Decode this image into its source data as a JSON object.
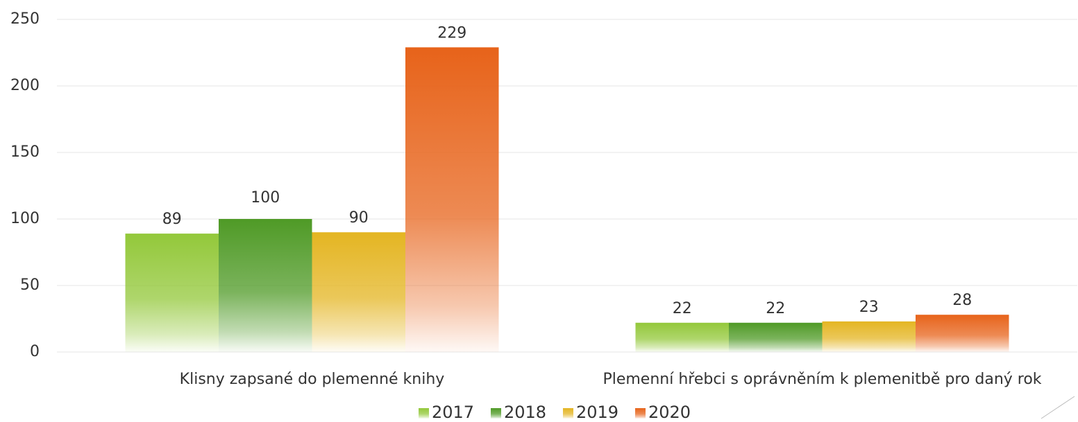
{
  "chart_data": {
    "type": "bar",
    "categories": [
      "Klisny zapsané do plemenné knihy",
      "Plemenní hřebci s oprávněním k plemenitbě pro daný rok"
    ],
    "series": [
      {
        "name": "2017",
        "color": "#93c83a",
        "values": [
          89,
          22
        ]
      },
      {
        "name": "2018",
        "color": "#4f9a26",
        "values": [
          100,
          22
        ]
      },
      {
        "name": "2019",
        "color": "#e4b522",
        "values": [
          90,
          23
        ]
      },
      {
        "name": "2020",
        "color": "#e7631a",
        "values": [
          229,
          28
        ]
      }
    ],
    "ylim": [
      0,
      250
    ],
    "yticks": [
      0,
      50,
      100,
      150,
      200,
      250
    ],
    "grid": true,
    "legend": "bottom"
  }
}
